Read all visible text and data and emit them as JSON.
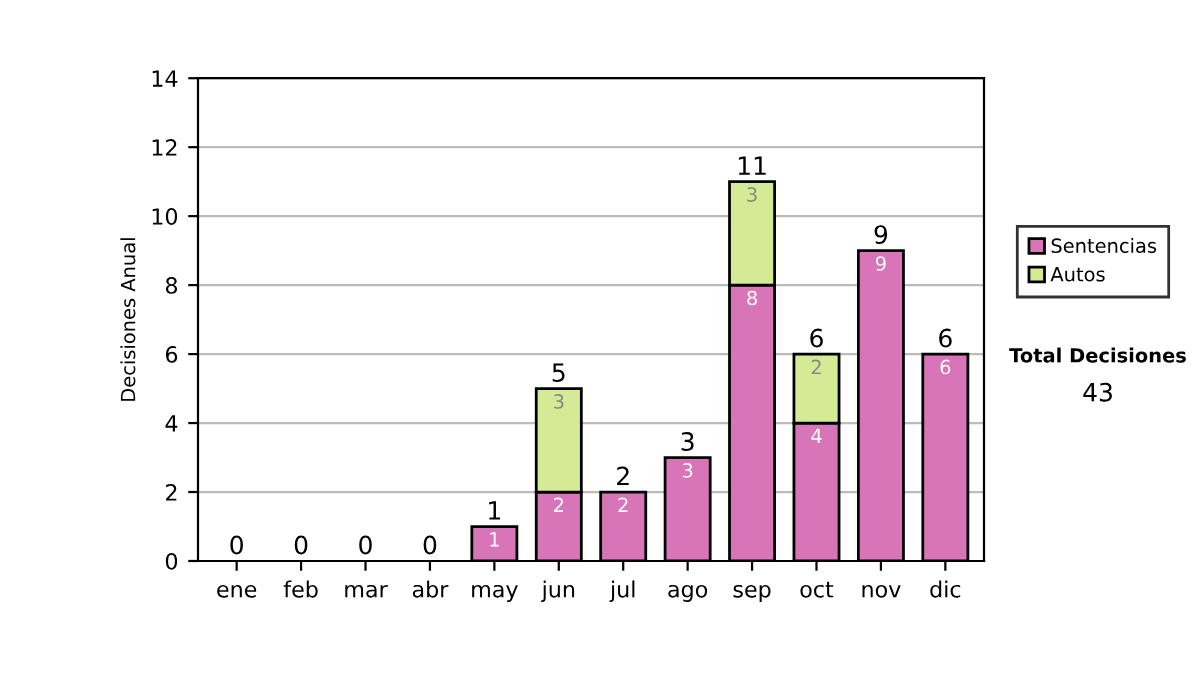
{
  "chart_data": {
    "type": "bar",
    "ylabel": "Decisiones Anual",
    "categories": [
      "ene",
      "feb",
      "mar",
      "abr",
      "may",
      "jun",
      "jul",
      "ago",
      "sep",
      "oct",
      "nov",
      "dic"
    ],
    "series": [
      {
        "name": "Sentencias",
        "color": "#d874b8",
        "values": [
          0,
          0,
          0,
          0,
          1,
          2,
          2,
          3,
          8,
          4,
          9,
          6
        ],
        "value_labels": [
          null,
          null,
          null,
          null,
          "1",
          "2",
          "2",
          "3",
          "8",
          "4",
          "9",
          "6"
        ]
      },
      {
        "name": "Autos",
        "color": "#d4ea94",
        "values": [
          0,
          0,
          0,
          0,
          0,
          3,
          0,
          0,
          3,
          2,
          0,
          0
        ],
        "value_labels": [
          null,
          null,
          null,
          null,
          null,
          "3",
          null,
          null,
          "3",
          "2",
          null,
          null
        ]
      }
    ],
    "stacked": true,
    "totals": [
      "0",
      "0",
      "0",
      "0",
      "1",
      "5",
      "2",
      "3",
      "11",
      "6",
      "9",
      "6"
    ],
    "ylim": [
      0,
      14
    ],
    "yticks": [
      0,
      2,
      4,
      6,
      8,
      10,
      12,
      14
    ],
    "grid": "y",
    "legend": "right",
    "annotations": [
      "Total Decisiones",
      "43"
    ]
  }
}
